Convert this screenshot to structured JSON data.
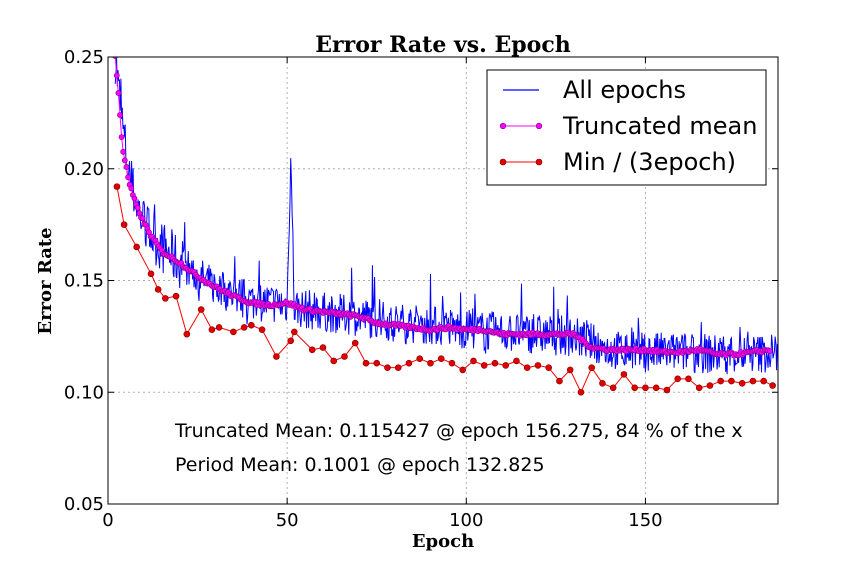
{
  "chart_data": {
    "type": "line",
    "title": "Error Rate vs. Epoch",
    "xlabel": "Epoch",
    "ylabel": "Error Rate",
    "xlim": [
      0,
      187
    ],
    "ylim": [
      0.05,
      0.25
    ],
    "xticks": [
      0,
      50,
      100,
      150
    ],
    "yticks": [
      0.05,
      0.1,
      0.15,
      0.2,
      0.25
    ],
    "ytick_labels": [
      "0.05",
      "0.10",
      "0.15",
      "0.20",
      "0.25"
    ],
    "grid": true,
    "legend_position": "top-right",
    "series": [
      {
        "name": "All epochs",
        "color": "#0000ff",
        "style": "noisy-line",
        "x": [
          2,
          4,
          6,
          8,
          10,
          15,
          20,
          25,
          30,
          40,
          50,
          51,
          52,
          60,
          70,
          80,
          90,
          100,
          110,
          120,
          130,
          140,
          150,
          160,
          170,
          180,
          187
        ],
        "y": [
          0.25,
          0.22,
          0.195,
          0.185,
          0.175,
          0.165,
          0.158,
          0.152,
          0.147,
          0.141,
          0.139,
          0.207,
          0.138,
          0.136,
          0.134,
          0.131,
          0.13,
          0.128,
          0.127,
          0.126,
          0.125,
          0.119,
          0.118,
          0.118,
          0.117,
          0.117,
          0.118
        ]
      },
      {
        "name": "Truncated mean",
        "color": "#ff00ff",
        "style": "dense-markers",
        "x": [
          2,
          3,
          4,
          6,
          8,
          10,
          12,
          15,
          20,
          25,
          30,
          35,
          40,
          45,
          50,
          55,
          60,
          65,
          70,
          75,
          80,
          85,
          90,
          95,
          100,
          105,
          110,
          115,
          120,
          125,
          130,
          135,
          140,
          145,
          150,
          155,
          160,
          165,
          170,
          175,
          180,
          185
        ],
        "y": [
          0.25,
          0.232,
          0.21,
          0.193,
          0.183,
          0.176,
          0.17,
          0.163,
          0.158,
          0.152,
          0.147,
          0.143,
          0.14,
          0.139,
          0.14,
          0.137,
          0.136,
          0.135,
          0.134,
          0.131,
          0.13,
          0.129,
          0.128,
          0.129,
          0.128,
          0.128,
          0.126,
          0.126,
          0.126,
          0.126,
          0.126,
          0.12,
          0.119,
          0.119,
          0.119,
          0.118,
          0.118,
          0.119,
          0.117,
          0.117,
          0.118,
          0.119
        ]
      },
      {
        "name": "Min / (3epoch)",
        "color": "#ff0000",
        "style": "line-markers",
        "x": [
          2.5,
          4.5,
          8,
          12,
          14,
          16,
          19,
          22,
          26,
          29,
          31,
          35,
          38,
          40,
          43,
          47,
          51,
          52,
          57,
          60,
          63,
          66,
          69,
          72,
          75,
          78,
          81,
          84,
          87,
          90,
          93,
          96,
          99,
          102,
          105,
          108,
          111,
          114,
          117,
          120,
          123,
          126,
          129,
          132,
          135,
          138,
          141,
          144,
          147,
          150,
          153,
          156,
          159,
          162,
          165,
          168,
          171,
          174,
          177,
          180,
          183,
          185.5
        ],
        "y": [
          0.192,
          0.175,
          0.165,
          0.153,
          0.146,
          0.142,
          0.143,
          0.126,
          0.137,
          0.128,
          0.129,
          0.127,
          0.129,
          0.13,
          0.128,
          0.116,
          0.123,
          0.127,
          0.119,
          0.12,
          0.114,
          0.116,
          0.122,
          0.113,
          0.113,
          0.111,
          0.111,
          0.113,
          0.115,
          0.113,
          0.115,
          0.113,
          0.11,
          0.114,
          0.112,
          0.113,
          0.112,
          0.114,
          0.111,
          0.112,
          0.111,
          0.105,
          0.11,
          0.1,
          0.111,
          0.104,
          0.102,
          0.108,
          0.102,
          0.102,
          0.102,
          0.101,
          0.106,
          0.106,
          0.102,
          0.103,
          0.105,
          0.105,
          0.104,
          0.105,
          0.105,
          0.103
        ]
      }
    ],
    "annotations": [
      "Truncated Mean: 0.115427 @ epoch 156.275, 84 % of the x",
      "Period Mean: 0.1001 @ epoch 132.825"
    ]
  }
}
